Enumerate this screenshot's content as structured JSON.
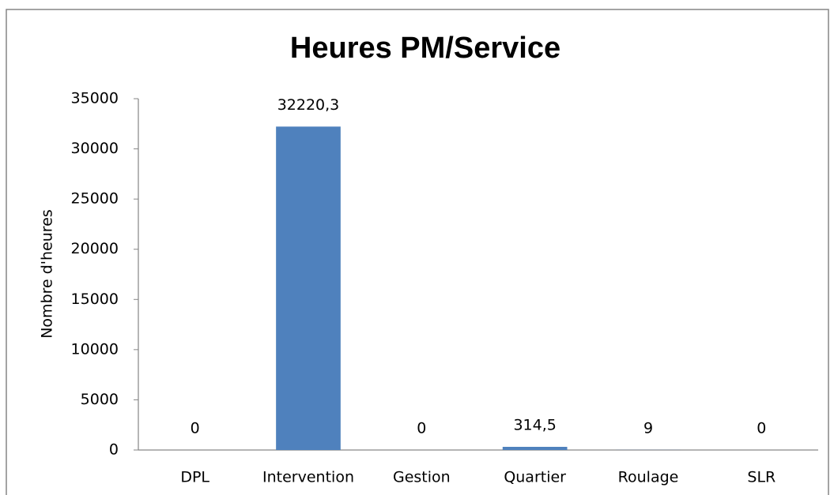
{
  "chart_data": {
    "type": "bar",
    "title": "Heures PM/Service",
    "y_axis_label": "Nombre d'heures",
    "categories": [
      "DPL",
      "Intervention",
      "Gestion",
      "Quartier",
      "Roulage",
      "SLR"
    ],
    "values": [
      0,
      32220.3,
      0,
      314.5,
      9,
      0
    ],
    "value_labels": [
      "0",
      "32220,3",
      "0",
      "314,5",
      "9",
      "0"
    ],
    "color": "#4f81bd",
    "ylim": [
      0,
      35000
    ],
    "yticks": [
      0,
      5000,
      10000,
      15000,
      20000,
      25000,
      30000,
      35000
    ],
    "grid": false
  }
}
